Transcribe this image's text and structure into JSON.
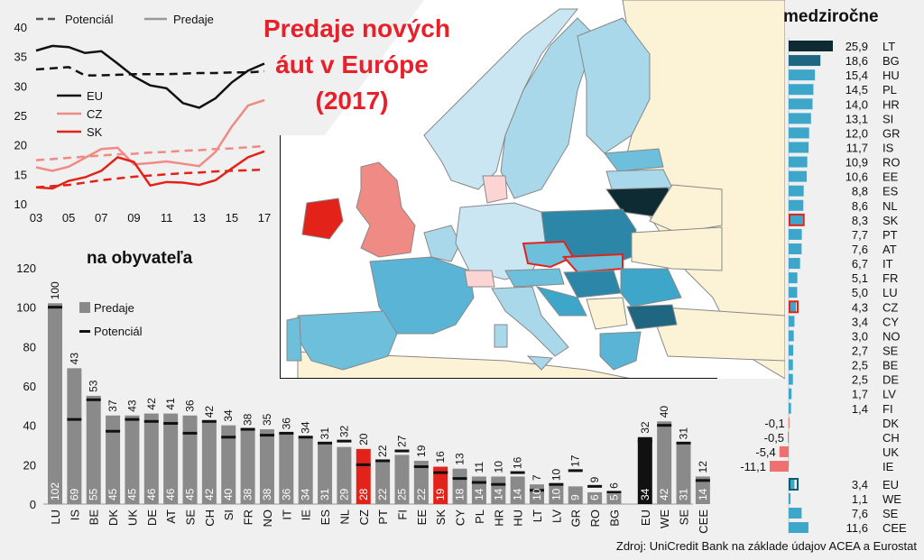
{
  "title": [
    "Predaje nových",
    "áut v Európe",
    "(2017)"
  ],
  "source": "Zdroj: UniCredit Bank na základe údajov ACEA a Eurostat",
  "colors": {
    "eu": "#111111",
    "cz": "#f08a85",
    "sk": "#e32219",
    "bar_grey": "#8a8a8a",
    "bar_black": "#111111",
    "bar_red": "#e32219",
    "yoy_bar": "#3ea6c9",
    "yoy_neg": "#f07070",
    "yoy_top": "#0e2a33"
  },
  "chart_data": [
    {
      "type": "line",
      "legend": [
        "Potenciál",
        "Predaje"
      ],
      "x_ticks": [
        "03",
        "05",
        "07",
        "09",
        "11",
        "13",
        "15",
        "17"
      ],
      "x": [
        2003,
        2004,
        2005,
        2006,
        2007,
        2008,
        2009,
        2010,
        2011,
        2012,
        2013,
        2014,
        2015,
        2016,
        2017
      ],
      "ylim": [
        10,
        40
      ],
      "y_ticks": [
        "10",
        "15",
        "20",
        "25",
        "30",
        "35",
        "40"
      ],
      "series": [
        {
          "name": "EU",
          "values": [
            36.0,
            36.8,
            36.6,
            35.6,
            35.9,
            33.8,
            31.6,
            30.1,
            29.6,
            27.1,
            26.3,
            27.9,
            30.6,
            32.6,
            33.8
          ]
        },
        {
          "name": "EU",
          "style": "dashed",
          "values": [
            32.8,
            33.0,
            33.2,
            31.8,
            31.8,
            31.9,
            32.0,
            32.0,
            32.0,
            32.1,
            32.2,
            32.2,
            32.3,
            32.3,
            32.5
          ]
        },
        {
          "name": "CZ",
          "values": [
            16.2,
            15.6,
            16.3,
            17.8,
            19.3,
            19.5,
            16.7,
            16.9,
            17.2,
            16.8,
            16.4,
            18.8,
            23.1,
            26.7,
            27.6
          ]
        },
        {
          "name": "CZ",
          "style": "dashed",
          "values": [
            17.4,
            17.6,
            17.8,
            18.0,
            18.2,
            18.4,
            18.5,
            18.7,
            18.8,
            19.0,
            19.1,
            19.3,
            19.4,
            19.6,
            19.8
          ]
        },
        {
          "name": "SK",
          "values": [
            12.8,
            12.6,
            13.9,
            14.5,
            15.6,
            17.9,
            17.1,
            13.1,
            13.7,
            13.6,
            13.2,
            14.0,
            16.0,
            17.9,
            18.9
          ]
        },
        {
          "name": "SK",
          "style": "dashed",
          "values": [
            12.8,
            13.0,
            13.2,
            13.6,
            14.0,
            14.3,
            14.6,
            14.8,
            15.0,
            15.2,
            15.3,
            15.5,
            15.6,
            15.7,
            15.8
          ]
        }
      ]
    },
    {
      "type": "bar",
      "title": "na obyvateľa",
      "legend": [
        "Predaje",
        "Potenciál"
      ],
      "ylim": [
        0,
        120
      ],
      "y_ticks": [
        "0",
        "20",
        "40",
        "60",
        "80",
        "100",
        "120"
      ],
      "categories": [
        "LU",
        "IS",
        "BE",
        "DK",
        "UK",
        "DE",
        "AT",
        "SE",
        "CH",
        "SI",
        "FR",
        "NO",
        "IT",
        "IE",
        "ES",
        "NL",
        "CZ",
        "PT",
        "FI",
        "EE",
        "SK",
        "CY",
        "PL",
        "HR",
        "HU",
        "LT",
        "LV",
        "GR",
        "RO",
        "BG",
        "EU",
        "WE",
        "SE",
        "CEE"
      ],
      "series": [
        {
          "name": "Predaje",
          "values": [
            102,
            69,
            55,
            45,
            45,
            46,
            46,
            45,
            42,
            40,
            38,
            38,
            36,
            34,
            31,
            29,
            28,
            22,
            25,
            22,
            19,
            18,
            14,
            14,
            14,
            10,
            10,
            9,
            6,
            5,
            34,
            42,
            31,
            14
          ]
        },
        {
          "name": "Potenciál",
          "values": [
            100,
            43,
            53,
            37,
            43,
            42,
            41,
            36,
            42,
            34,
            38,
            35,
            36,
            34,
            31,
            32,
            20,
            22,
            27,
            19,
            16,
            13,
            11,
            10,
            16,
            7,
            10,
            17,
            9,
            6,
            32,
            40,
            31,
            12
          ]
        }
      ],
      "sales_labels": [
        "102",
        "69",
        "55",
        "45",
        "45",
        "46",
        "46",
        "45",
        "42",
        "40",
        "38",
        "38",
        "36",
        "34",
        "31",
        "29",
        "28",
        "22",
        "25",
        "22",
        "19",
        "18",
        "14",
        "14",
        "14",
        "10",
        "10",
        "9",
        "6",
        "5",
        "34",
        "42",
        "31",
        "14"
      ],
      "potential_labels": [
        "100",
        "43",
        "53",
        "37",
        "43",
        "42",
        "41",
        "36",
        "42",
        "34",
        "38",
        "35",
        "36",
        "34",
        "31",
        "32",
        "20",
        "22",
        "27",
        "19",
        "16",
        "13",
        "11",
        "10",
        "16",
        "7",
        "10",
        "17",
        "9",
        "6",
        "32",
        "40",
        "31",
        "12"
      ],
      "highlight": {
        "CZ": "red",
        "SK": "red",
        "EU": "black"
      }
    },
    {
      "type": "bar",
      "title": "medziročne",
      "orientation": "horizontal",
      "categories": [
        "LT",
        "BG",
        "HU",
        "PL",
        "HR",
        "SI",
        "GR",
        "IS",
        "RO",
        "EE",
        "ES",
        "NL",
        "SK",
        "PT",
        "AT",
        "IT",
        "FR",
        "LU",
        "CZ",
        "CY",
        "NO",
        "SE",
        "BE",
        "DE",
        "LV",
        "FI",
        "DK",
        "CH",
        "UK",
        "IE"
      ],
      "values": [
        25.9,
        18.6,
        15.4,
        14.5,
        14.0,
        13.1,
        12.0,
        11.7,
        10.9,
        10.6,
        8.8,
        8.6,
        8.3,
        7.7,
        7.6,
        6.7,
        5.1,
        5.0,
        4.3,
        3.4,
        3.0,
        2.7,
        2.5,
        2.5,
        1.7,
        1.4,
        -0.1,
        -0.5,
        -5.4,
        -11.1
      ],
      "labels": [
        "25,9",
        "18,6",
        "15,4",
        "14,5",
        "14,0",
        "13,1",
        "12,0",
        "11,7",
        "10,9",
        "10,6",
        "8,8",
        "8,6",
        "8,3",
        "7,7",
        "7,6",
        "6,7",
        "5,1",
        "5,0",
        "4,3",
        "3,4",
        "3,0",
        "2,7",
        "2,5",
        "2,5",
        "1,7",
        "1,4",
        "-0,1",
        "-0,5",
        "-5,4",
        "-11,1"
      ],
      "summary_categories": [
        "EU",
        "WE",
        "SE",
        "CEE"
      ],
      "summary_values": [
        3.4,
        1.1,
        7.6,
        11.6
      ],
      "summary_labels": [
        "3,4",
        "1,1",
        "7,6",
        "11,6"
      ],
      "highlight": [
        "SK",
        "CZ",
        "EU"
      ]
    }
  ],
  "map": {
    "labels": [],
    "legend": []
  }
}
